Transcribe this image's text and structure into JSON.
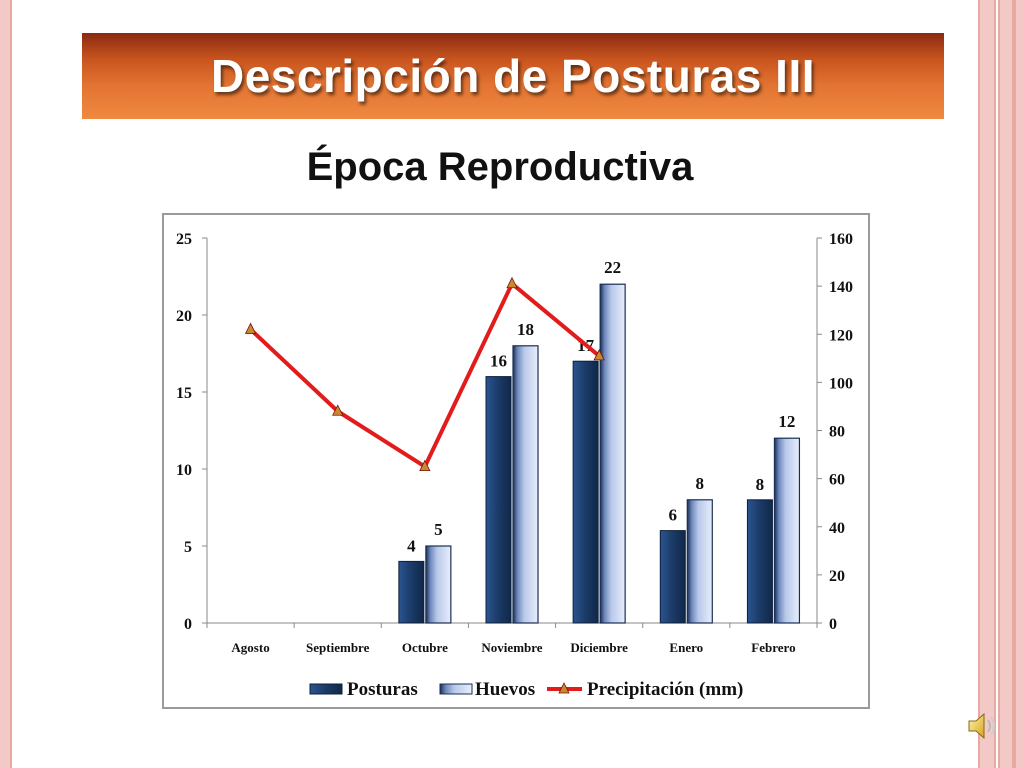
{
  "slide": {
    "title": "Descripción de Posturas III",
    "subtitle": "Época Reproductiva"
  },
  "colors": {
    "posturas": "#1b3a66",
    "huevos": "#b9c9ea",
    "precipitacion": "#e21b1b",
    "marker": "#c98a2e"
  },
  "icons": {
    "speaker": "speaker-icon"
  },
  "chart_data": {
    "type": "bar",
    "categories": [
      "Agosto",
      "Septiembre",
      "Octubre",
      "Noviembre",
      "Diciembre",
      "Enero",
      "Febrero"
    ],
    "series": [
      {
        "name": "Posturas",
        "type": "bar",
        "axis": "left",
        "values": [
          null,
          null,
          4,
          16,
          17,
          6,
          8
        ],
        "labels": [
          "",
          "",
          "4",
          "16",
          "17",
          "6",
          "8"
        ]
      },
      {
        "name": "Huevos",
        "type": "bar",
        "axis": "left",
        "values": [
          null,
          null,
          5,
          18,
          22,
          8,
          12
        ],
        "labels": [
          "",
          "",
          "5",
          "18",
          "22",
          "8",
          "12"
        ]
      },
      {
        "name": "Precipitación (mm)",
        "type": "line",
        "axis": "right",
        "values": [
          122,
          88,
          65,
          141,
          111,
          null,
          null
        ]
      }
    ],
    "y_left": {
      "range": [
        0,
        25
      ],
      "ticks": [
        "0",
        "5",
        "10",
        "15",
        "20",
        "25"
      ]
    },
    "y_right": {
      "range": [
        0,
        160
      ],
      "ticks": [
        "0",
        "20",
        "40",
        "60",
        "80",
        "100",
        "120",
        "140",
        "160"
      ]
    },
    "grid": false,
    "legend_position": "bottom"
  }
}
